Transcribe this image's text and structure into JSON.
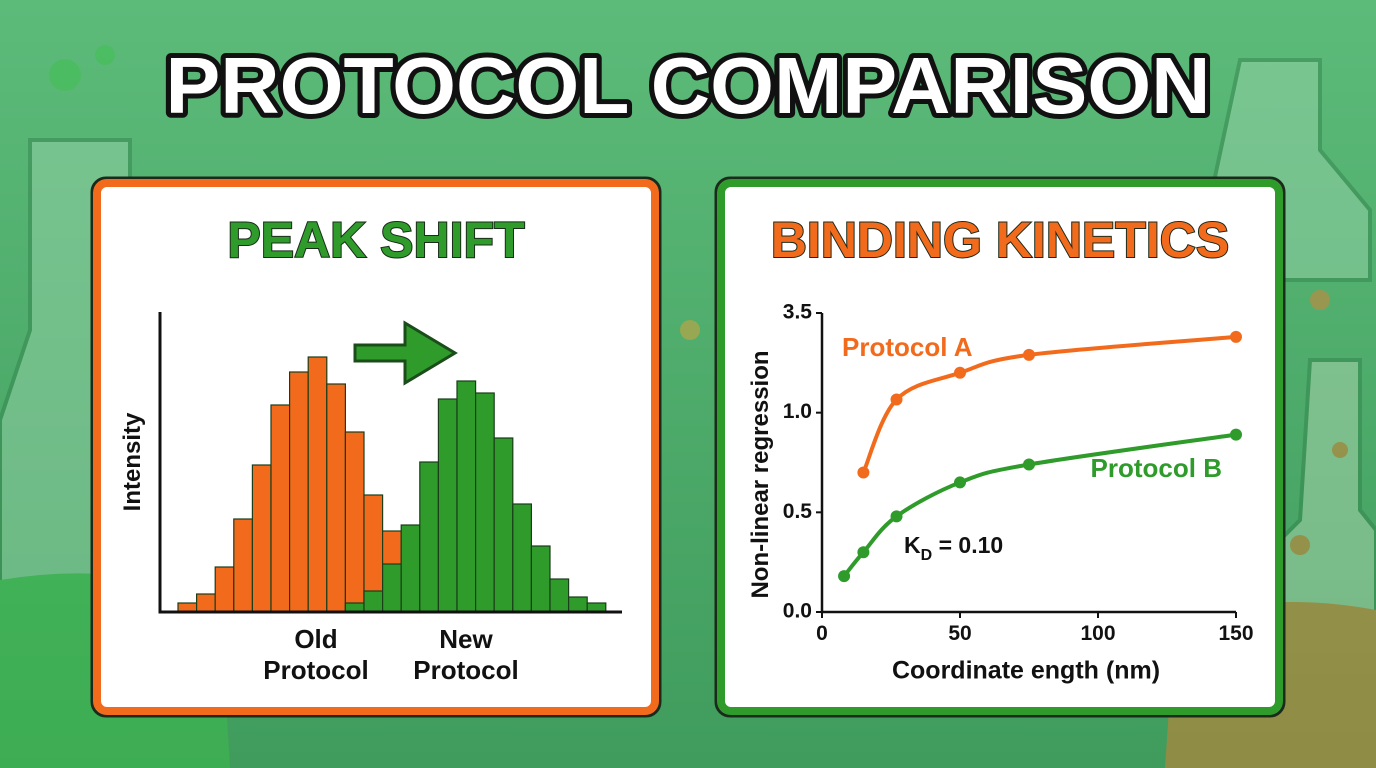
{
  "title": "PROTOCOL COMPARISON",
  "chart_data": [
    {
      "type": "histogram",
      "title": "PEAK SHIFT",
      "y_label": "Intensity",
      "x_labels": [
        [
          "Old",
          "Protocol"
        ],
        [
          "New",
          "Protocol"
        ]
      ],
      "ylim": [
        0,
        100
      ],
      "series": [
        {
          "name": "Old Protocol",
          "color": "#f26b1d",
          "values": [
            3,
            6,
            15,
            31,
            49,
            69,
            80,
            85,
            76,
            60,
            39,
            27,
            null,
            null,
            null,
            null,
            null,
            null,
            null,
            null,
            null,
            null,
            null
          ]
        },
        {
          "name": "New Protocol",
          "color": "#2e9b2a",
          "values": [
            null,
            null,
            null,
            null,
            null,
            null,
            null,
            null,
            null,
            3,
            7,
            16,
            29,
            50,
            71,
            77,
            73,
            58,
            36,
            22,
            11,
            5,
            3
          ]
        }
      ]
    },
    {
      "type": "scatter",
      "title": "BINDING KINETICS",
      "x_label": "Coordinate ength (nm)",
      "y_label": "Non-linear regression",
      "xlim": [
        0,
        150
      ],
      "xticks": [
        0,
        50,
        100,
        150
      ],
      "ylim": [
        0,
        3.5
      ],
      "yticks": [
        {
          "value": 0,
          "label": "0.0"
        },
        0.5,
        {
          "value": 1,
          "label": "1.0"
        },
        3.5
      ],
      "annotation": {
        "main": "K",
        "subscript": "D",
        "rest": " = 0.10"
      },
      "series": [
        {
          "name": "Protocol A",
          "color": "#f26b1d",
          "x": [
            15,
            27,
            50,
            75,
            150
          ],
          "values": [
            0.7,
            1.33,
            2.0,
            2.45,
            2.9
          ]
        },
        {
          "name": "Protocol B",
          "color": "#2e9b2a",
          "x": [
            8,
            15,
            27,
            50,
            75,
            150
          ],
          "values": [
            0.18,
            0.3,
            0.48,
            0.65,
            0.74,
            0.89
          ]
        }
      ]
    }
  ]
}
